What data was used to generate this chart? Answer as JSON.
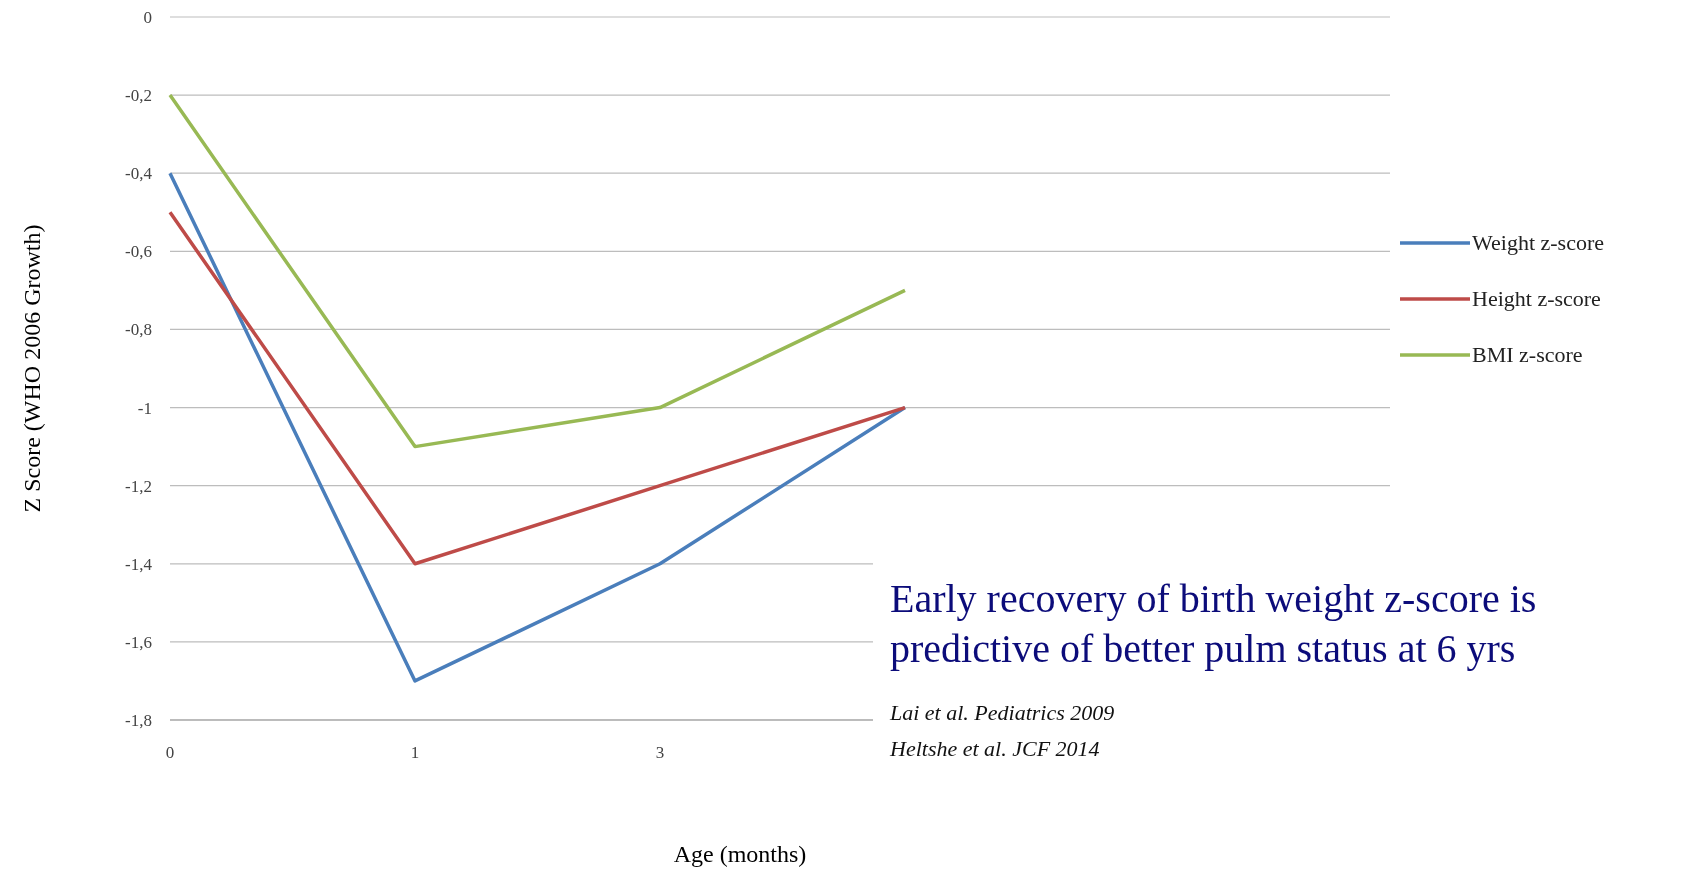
{
  "chart_data": {
    "type": "line",
    "xlabel": "Age (months)",
    "ylabel": "Z Score (WHO 2006 Growth)",
    "categories": [
      "0",
      "1",
      "3",
      null
    ],
    "series": [
      {
        "name": "Weight z-score",
        "color": "#4a7ebb",
        "values": [
          -0.4,
          -1.7,
          -1.4,
          -1.0
        ]
      },
      {
        "name": "Height z-score",
        "color": "#be4b48",
        "values": [
          -0.5,
          -1.4,
          -1.2,
          -1.0
        ]
      },
      {
        "name": "BMI z-score",
        "color": "#98b954",
        "values": [
          -0.2,
          -1.1,
          -1.0,
          -0.7
        ]
      }
    ],
    "ylim": [
      -1.8,
      0
    ],
    "yticks": [
      0,
      {
        "value": -0.2,
        "label": "-0,2"
      },
      {
        "value": -0.4,
        "label": "-0,4"
      },
      {
        "value": -0.6,
        "label": "-0,6"
      },
      {
        "value": -0.8,
        "label": "-0,8"
      },
      -1,
      {
        "value": -1.2,
        "label": "-1,2"
      },
      {
        "value": -1.4,
        "label": "-1,4"
      },
      {
        "value": -1.6,
        "label": "-1,6"
      },
      {
        "value": -1.8,
        "label": "-1,8"
      }
    ],
    "grid": "y",
    "legend": "right",
    "marker": "none",
    "line_style": "solid",
    "annotations": [
      "Early recovery of birth weight z-score is predictive of better pulm status at 6 yrs",
      "Lai et al. Pediatrics 2009",
      "Heltshe et al. JCF 2014"
    ]
  }
}
